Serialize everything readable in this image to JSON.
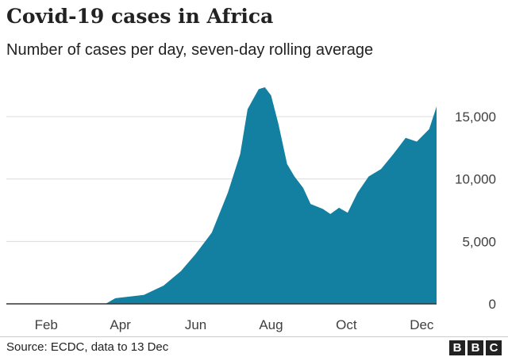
{
  "chart_data": {
    "type": "area",
    "title": "Covid-19 cases in Africa",
    "subtitle": "Number of cases per day, seven-day rolling average",
    "xlabel": "",
    "ylabel": "",
    "ylim": [
      0,
      15000
    ],
    "yticks": [
      0,
      5000,
      10000,
      15000
    ],
    "ytick_labels": [
      "0",
      "5,000",
      "10,000",
      "15,000"
    ],
    "xtick_labels": [
      "Feb",
      "Apr",
      "Jun",
      "Aug",
      "Oct",
      "Dec"
    ],
    "xticks": [
      "2020-02-01",
      "2020-04-01",
      "2020-06-01",
      "2020-08-01",
      "2020-10-01",
      "2020-12-01"
    ],
    "xlim": [
      "2020-01-01",
      "2020-12-13"
    ],
    "grid": true,
    "color": "#1380a1",
    "x": [
      "2020-01-01",
      "2020-03-20",
      "2020-03-28",
      "2020-04-20",
      "2020-05-06",
      "2020-05-20",
      "2020-06-01",
      "2020-06-14",
      "2020-06-27",
      "2020-07-07",
      "2020-07-13",
      "2020-07-22",
      "2020-07-27",
      "2020-08-01",
      "2020-08-07",
      "2020-08-14",
      "2020-08-20",
      "2020-08-27",
      "2020-09-02",
      "2020-09-12",
      "2020-09-18",
      "2020-09-25",
      "2020-10-02",
      "2020-10-10",
      "2020-10-19",
      "2020-10-29",
      "2020-11-08",
      "2020-11-18",
      "2020-11-27",
      "2020-12-07",
      "2020-12-13"
    ],
    "values": [
      0,
      0,
      450,
      720,
      1460,
      2620,
      4000,
      5700,
      8900,
      12000,
      15600,
      17200,
      17350,
      16700,
      14400,
      11200,
      10200,
      9300,
      8000,
      7600,
      7200,
      7700,
      7300,
      8900,
      10200,
      10800,
      12000,
      13300,
      13000,
      14000,
      15800
    ]
  },
  "footer": {
    "source": "Source: ECDC, data to 13 Dec",
    "logo": [
      "B",
      "B",
      "C"
    ]
  }
}
